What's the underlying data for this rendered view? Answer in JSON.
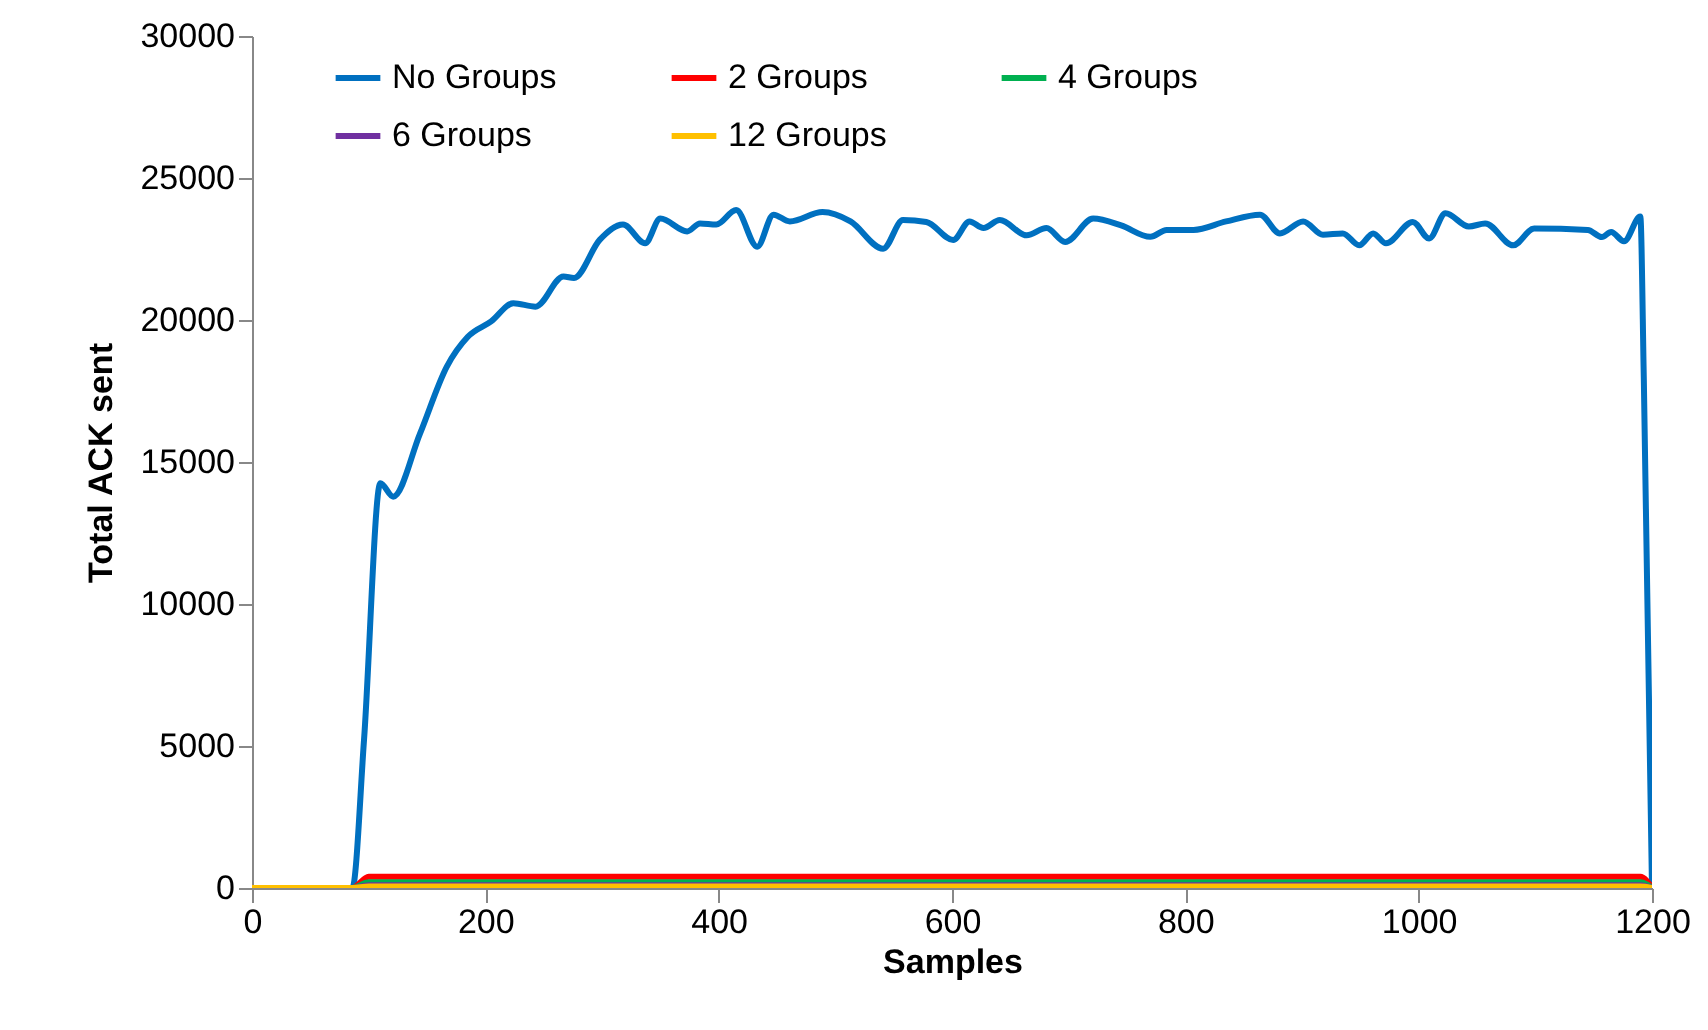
{
  "chart_data": {
    "type": "line",
    "xlabel": "Samples",
    "ylabel": "Total ACK sent",
    "xlim": [
      0,
      1200
    ],
    "xticks": [
      0,
      200,
      400,
      600,
      800,
      1000,
      1200
    ],
    "ylim": [
      0,
      30000
    ],
    "yticks": [
      0,
      5000,
      10000,
      15000,
      20000,
      25000,
      30000
    ],
    "grid": false,
    "legend": "top",
    "marker": "none",
    "line_style": "solid",
    "series": [
      {
        "name": "No Groups",
        "color": "#0070c0",
        "x": [
          0,
          86,
          96,
          110,
          121,
          144,
          167,
          185,
          205,
          224,
          243,
          267,
          276,
          298,
          318,
          337,
          350,
          373,
          384,
          398,
          415,
          433,
          447,
          461,
          489,
          513,
          541,
          558,
          578,
          601,
          615,
          627,
          641,
          664,
          681,
          697,
          721,
          745,
          770,
          784,
          807,
          835,
          864,
          881,
          901,
          918,
          935,
          949,
          961,
          972,
          995,
          1009,
          1023,
          1043,
          1057,
          1081,
          1099,
          1145,
          1157,
          1165,
          1176,
          1190,
          1193,
          1200
        ],
        "values": [
          0,
          0,
          5200,
          14250,
          13780,
          16000,
          18360,
          19410,
          19950,
          20590,
          20470,
          21530,
          21480,
          22820,
          23360,
          22700,
          23570,
          23120,
          23400,
          23360,
          23870,
          22580,
          23710,
          23470,
          23800,
          23470,
          22510,
          23520,
          23450,
          22820,
          23470,
          23240,
          23520,
          22980,
          23240,
          22750,
          23570,
          23330,
          22930,
          23170,
          23170,
          23470,
          23710,
          23050,
          23470,
          23000,
          23050,
          22630,
          23050,
          22700,
          23450,
          22870,
          23760,
          23290,
          23400,
          22630,
          23220,
          23170,
          22920,
          23100,
          22770,
          23640,
          17890,
          0
        ]
      },
      {
        "name": "2 Groups",
        "color": "#ff0000",
        "x": [
          0,
          86,
          100,
          300,
          500,
          700,
          900,
          1100,
          1190,
          1200
        ],
        "values": [
          0,
          0,
          400,
          400,
          400,
          400,
          400,
          400,
          400,
          0
        ]
      },
      {
        "name": "4 Groups",
        "color": "#00b050",
        "x": [
          0,
          86,
          100,
          300,
          500,
          700,
          900,
          1100,
          1190,
          1200
        ],
        "values": [
          0,
          0,
          200,
          200,
          200,
          200,
          200,
          200,
          200,
          0
        ]
      },
      {
        "name": "6 Groups",
        "color": "#7030a0",
        "x": [
          0,
          86,
          100,
          300,
          500,
          700,
          900,
          1100,
          1190,
          1200
        ],
        "values": [
          0,
          0,
          100,
          100,
          100,
          100,
          100,
          100,
          100,
          0
        ]
      },
      {
        "name": "12 Groups",
        "color": "#ffc000",
        "x": [
          0,
          86,
          100,
          300,
          500,
          700,
          900,
          1100,
          1190,
          1200
        ],
        "values": [
          0,
          0,
          50,
          50,
          50,
          50,
          50,
          50,
          50,
          0
        ]
      }
    ]
  }
}
